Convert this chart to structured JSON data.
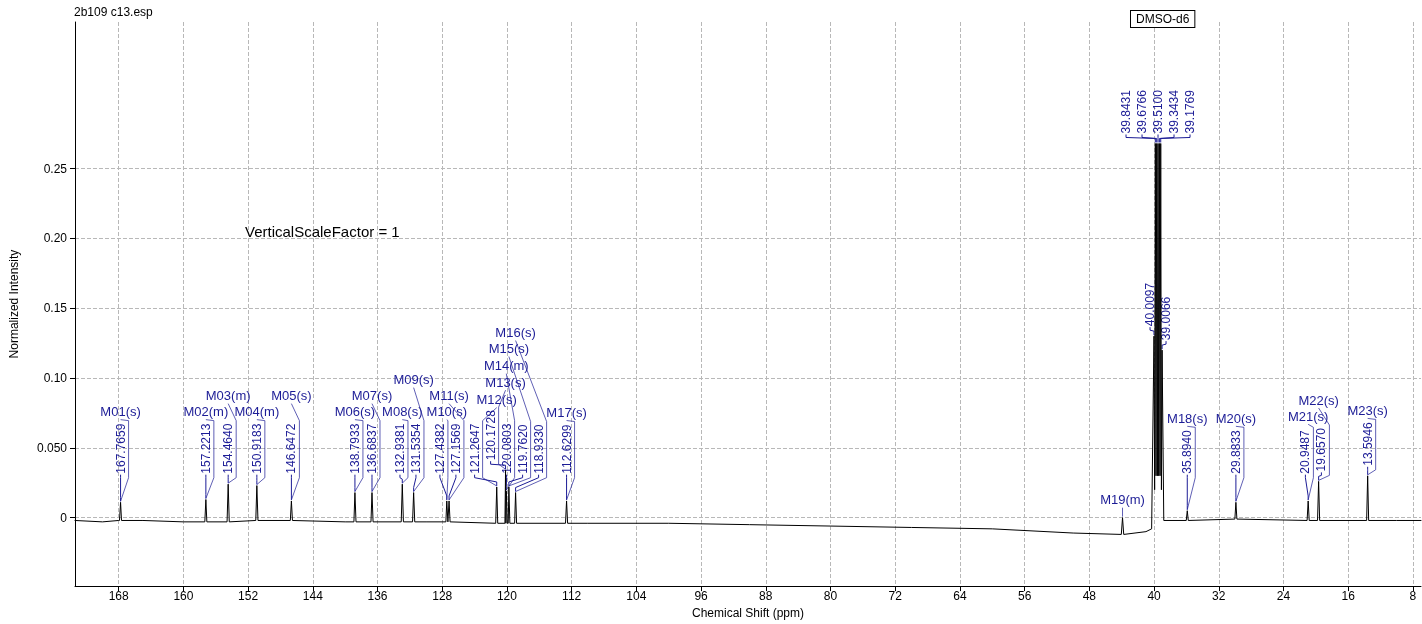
{
  "chart_data": {
    "type": "line",
    "xlabel": "Chemical Shift (ppm)",
    "ylabel": "Normalized Intensity",
    "x": [
      173.4,
      170,
      168.0,
      167.9,
      167.7659,
      167.65,
      165,
      160,
      157.35,
      157.2213,
      157.1,
      154.6,
      154.464,
      154.33,
      151.05,
      150.9183,
      150.78,
      146.78,
      146.6472,
      146.52,
      140,
      138.92,
      138.7933,
      138.66,
      136.81,
      136.6837,
      136.55,
      133.07,
      132.9381,
      132.8,
      131.67,
      131.5354,
      131.4,
      130,
      127.55,
      127.4382,
      127.3,
      127.1569,
      127.03,
      121.39,
      121.2647,
      121.14,
      120.25,
      120.1728,
      120.13,
      120.0803,
      119.95,
      119.84,
      119.762,
      119.64,
      119.05,
      118.933,
      118.81,
      112.76,
      112.6299,
      112.5,
      110,
      100,
      90,
      80,
      70,
      60,
      50,
      44.05,
      43.9,
      43.75,
      41,
      40.3,
      40.0097,
      39.93,
      39.8431,
      39.76,
      39.6766,
      39.59,
      39.51,
      39.43,
      39.3434,
      39.26,
      39.1769,
      39.09,
      39.0066,
      38.8,
      36.02,
      35.894,
      35.77,
      30.01,
      29.8833,
      29.76,
      21.08,
      20.9487,
      20.82,
      19.79,
      19.657,
      19.53,
      13.72,
      13.5946,
      13.47,
      10,
      7
    ],
    "series": [
      {
        "color": "#000000",
        "values": [
          -0.002,
          -0.003,
          -0.002,
          -0.002,
          0.011,
          -0.002,
          -0.002,
          -0.003,
          -0.003,
          0.013,
          -0.003,
          -0.003,
          0.024,
          -0.003,
          -0.002,
          0.023,
          -0.002,
          -0.002,
          0.012,
          -0.002,
          -0.003,
          -0.003,
          0.018,
          -0.003,
          -0.003,
          0.018,
          -0.003,
          -0.003,
          0.024,
          -0.003,
          -0.003,
          0.018,
          -0.003,
          -0.003,
          -0.003,
          0.012,
          -0.003,
          0.012,
          -0.003,
          -0.004,
          0.022,
          -0.004,
          -0.004,
          0.034,
          -0.004,
          0.019,
          -0.004,
          -0.004,
          0.022,
          -0.004,
          -0.004,
          0.018,
          -0.004,
          -0.004,
          0.012,
          -0.004,
          -0.004,
          -0.004,
          -0.005,
          -0.006,
          -0.007,
          -0.008,
          -0.011,
          -0.012,
          0.0,
          -0.012,
          -0.01,
          -0.008,
          0.13,
          0.02,
          0.268,
          0.03,
          0.268,
          0.03,
          0.268,
          0.03,
          0.268,
          0.03,
          0.268,
          0.02,
          0.12,
          -0.002,
          -0.002,
          0.005,
          -0.002,
          -0.001,
          0.011,
          -0.001,
          -0.002,
          0.012,
          -0.002,
          -0.002,
          0.026,
          -0.002,
          -0.002,
          0.03,
          -0.002,
          -0.002,
          -0.002
        ]
      }
    ],
    "xlim": [
      173.4,
      7
    ],
    "xticks": [
      168,
      160,
      152,
      144,
      136,
      128,
      120,
      112,
      104,
      96,
      88,
      80,
      72,
      64,
      56,
      48,
      40,
      32,
      24,
      16,
      8
    ],
    "ylim": [
      -0.049,
      0.355
    ],
    "yticks": [
      0,
      {
        "value": 0.05,
        "label": "0.050"
      },
      {
        "value": 0.1,
        "label": "0.10"
      },
      0.15,
      {
        "value": 0.2,
        "label": "0.20"
      },
      0.25
    ],
    "grid": true,
    "marker": "none",
    "line_style": "solid",
    "annotations": [
      "2b109 c13.esp",
      "VerticalScaleFactor = 1",
      "DMSO-d6",
      {
        "text": "167.7659",
        "x": 167.7659,
        "y": 0.011
      },
      {
        "text": "157.2213",
        "x": 157.2213,
        "y": 0.013
      },
      {
        "text": "154.4640",
        "x": 154.464,
        "y": 0.024
      },
      {
        "text": "150.9183",
        "x": 150.9183,
        "y": 0.023
      },
      {
        "text": "146.6472",
        "x": 146.6472,
        "y": 0.012
      },
      {
        "text": "138.7933",
        "x": 138.7933,
        "y": 0.018
      },
      {
        "text": "136.6837",
        "x": 136.6837,
        "y": 0.018
      },
      {
        "text": "132.9381",
        "x": 132.9381,
        "y": 0.024
      },
      {
        "text": "131.5354",
        "x": 131.5354,
        "y": 0.018
      },
      {
        "text": "127.4382",
        "x": 127.4382,
        "y": 0.012
      },
      {
        "text": "127.1569",
        "x": 127.1569,
        "y": 0.012
      },
      {
        "text": "121.2647",
        "x": 121.2647,
        "y": 0.022
      },
      {
        "text": "120.1728",
        "x": 120.1728,
        "y": 0.034
      },
      {
        "text": "120.0803",
        "x": 120.0803,
        "y": 0.019
      },
      {
        "text": "119.7620",
        "x": 119.762,
        "y": 0.022
      },
      {
        "text": "118.9330",
        "x": 118.933,
        "y": 0.018
      },
      {
        "text": "112.6299",
        "x": 112.6299,
        "y": 0.012
      },
      {
        "text": "39.8431",
        "x": 39.8431,
        "y": 0.268
      },
      {
        "text": "39.6766",
        "x": 39.6766,
        "y": 0.268
      },
      {
        "text": "39.5100",
        "x": 39.51,
        "y": 0.268
      },
      {
        "text": "39.3434",
        "x": 39.3434,
        "y": 0.268
      },
      {
        "text": "39.1769",
        "x": 39.1769,
        "y": 0.268
      },
      {
        "text": "40.0097",
        "x": 40.0097,
        "y": 0.13
      },
      {
        "text": "39.0066",
        "x": 39.0066,
        "y": 0.12
      },
      {
        "text": "35.8940",
        "x": 35.894,
        "y": 0.005
      },
      {
        "text": "29.8833",
        "x": 29.8833,
        "y": 0.011
      },
      {
        "text": "20.9487",
        "x": 20.9487,
        "y": 0.012
      },
      {
        "text": "19.6570",
        "x": 19.657,
        "y": 0.026
      },
      {
        "text": "13.5946",
        "x": 13.5946,
        "y": 0.03
      },
      {
        "text": "M01(s)",
        "x": 167.7659,
        "y": 0.011
      },
      {
        "text": "M02(m)",
        "x": 157.2213,
        "y": 0.013
      },
      {
        "text": "M03(m)",
        "x": 154.464,
        "y": 0.024
      },
      {
        "text": "M04(m)",
        "x": 150.9183,
        "y": 0.023
      },
      {
        "text": "M05(s)",
        "x": 146.6472,
        "y": 0.012
      },
      {
        "text": "M06(s)",
        "x": 138.7933,
        "y": 0.018
      },
      {
        "text": "M07(s)",
        "x": 136.6837,
        "y": 0.018
      },
      {
        "text": "M08(s)",
        "x": 132.9381,
        "y": 0.024
      },
      {
        "text": "M09(s)",
        "x": 131.5354,
        "y": 0.018
      },
      {
        "text": "M10(s)",
        "x": 127.4382,
        "y": 0.012
      },
      {
        "text": "M11(s)",
        "x": 127.1569,
        "y": 0.012
      },
      {
        "text": "M12(s)",
        "x": 121.2647,
        "y": 0.022
      },
      {
        "text": "M13(s)",
        "x": 120.1728,
        "y": 0.034
      },
      {
        "text": "M14(m)",
        "x": 120.0803,
        "y": 0.019
      },
      {
        "text": "M15(s)",
        "x": 119.762,
        "y": 0.022
      },
      {
        "text": "M16(s)",
        "x": 118.933,
        "y": 0.018
      },
      {
        "text": "M17(s)",
        "x": 112.6299,
        "y": 0.012
      },
      {
        "text": "M19(m)",
        "x": 43.9,
        "y": 0.0
      },
      {
        "text": "M18(s)",
        "x": 35.894,
        "y": 0.005
      },
      {
        "text": "M20(s)",
        "x": 29.8833,
        "y": 0.011
      },
      {
        "text": "M21(s)",
        "x": 20.9487,
        "y": 0.012
      },
      {
        "text": "M22(s)",
        "x": 19.657,
        "y": 0.026
      },
      {
        "text": "M23(s)",
        "x": 13.5946,
        "y": 0.03
      }
    ]
  }
}
